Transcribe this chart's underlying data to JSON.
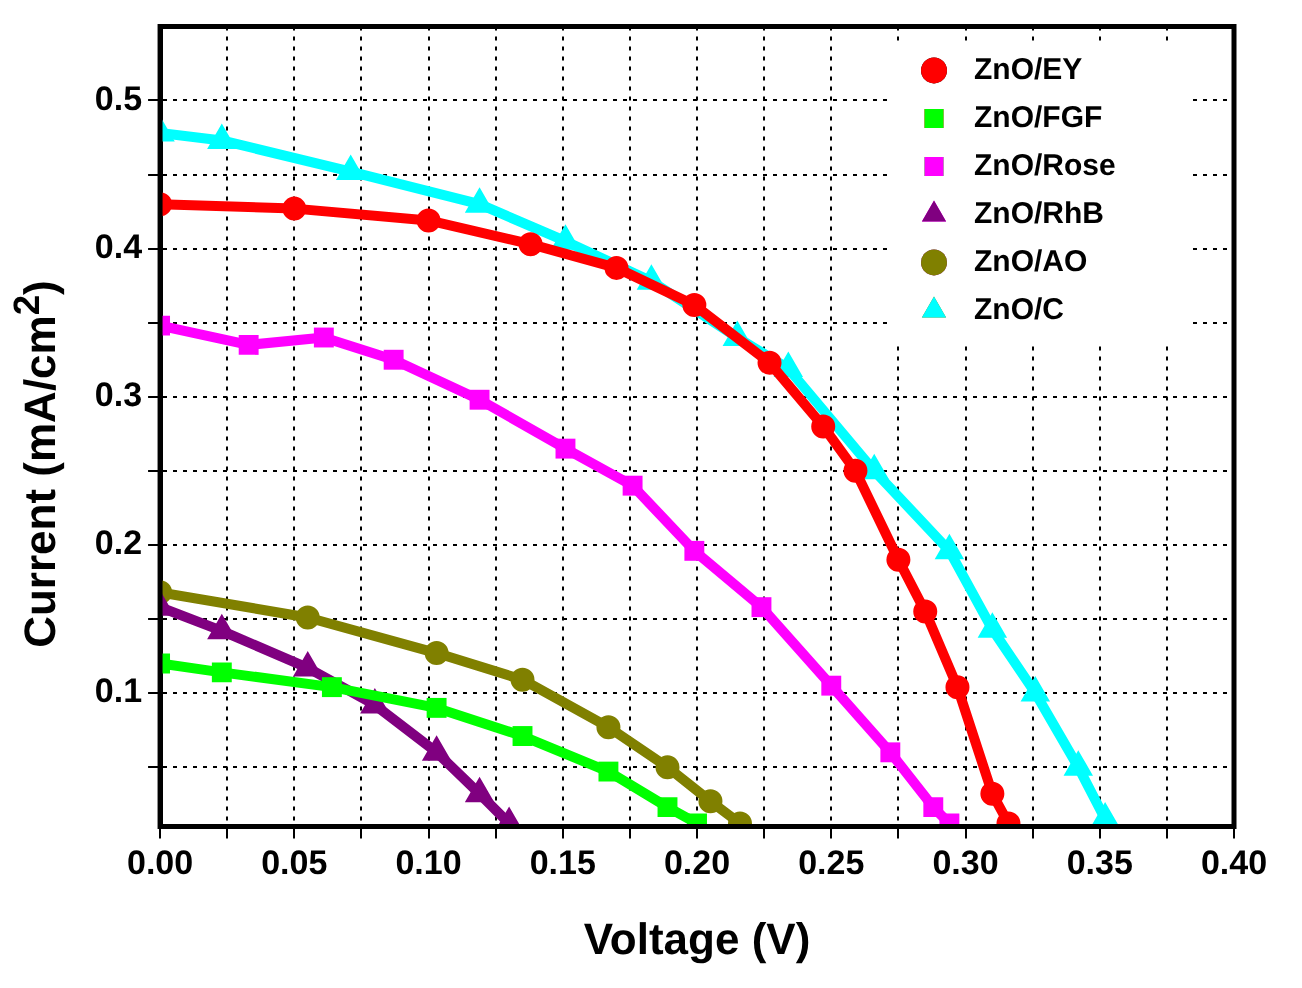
{
  "chart_data": {
    "type": "line",
    "xlabel": "Voltage (V)",
    "ylabel": "Current (mA/cm$^{2}$)",
    "xlim": [
      0,
      0.4
    ],
    "ylim": [
      0.01,
      0.55
    ],
    "xticks": [
      {
        "value": 0,
        "label": "0.00"
      },
      {
        "value": 0.025,
        "label": null
      },
      {
        "value": 0.05,
        "label": "0.05"
      },
      {
        "value": 0.075,
        "label": null
      },
      {
        "value": 0.1,
        "label": "0.10"
      },
      {
        "value": 0.125,
        "label": null
      },
      {
        "value": 0.15,
        "label": "0.15"
      },
      {
        "value": 0.175,
        "label": null
      },
      {
        "value": 0.2,
        "label": "0.20"
      },
      {
        "value": 0.225,
        "label": null
      },
      {
        "value": 0.25,
        "label": "0.25"
      },
      {
        "value": 0.275,
        "label": null
      },
      {
        "value": 0.3,
        "label": "0.30"
      },
      {
        "value": 0.325,
        "label": null
      },
      {
        "value": 0.35,
        "label": "0.35"
      },
      {
        "value": 0.375,
        "label": null
      },
      {
        "value": 0.4,
        "label": "0.40"
      }
    ],
    "yticks": [
      {
        "value": 0.05,
        "label": null
      },
      0.1,
      {
        "value": 0.15,
        "label": null
      },
      0.2,
      {
        "value": 0.25,
        "label": null
      },
      0.3,
      {
        "value": 0.35,
        "label": null
      },
      0.4,
      {
        "value": 0.45,
        "label": null
      },
      0.5
    ],
    "grid": true,
    "legend": "top right",
    "series": [
      {
        "name": "ZnO/EY",
        "color": "#ff0000",
        "marker": "circle",
        "x": [
          0,
          0.05,
          0.1,
          0.138,
          0.17,
          0.199,
          0.227,
          0.247,
          0.259,
          0.275,
          0.285,
          0.297,
          0.31,
          0.316
        ],
        "values": [
          0.43,
          0.427,
          0.419,
          0.403,
          0.387,
          0.362,
          0.323,
          0.28,
          0.25,
          0.19,
          0.155,
          0.104,
          0.032,
          0.012
        ]
      },
      {
        "name": "ZnO/FGF",
        "color": "#00ff00",
        "marker": "square",
        "x": [
          0,
          0.023,
          0.064,
          0.103,
          0.135,
          0.167,
          0.189,
          0.2
        ],
        "values": [
          0.12,
          0.114,
          0.104,
          0.09,
          0.071,
          0.047,
          0.023,
          0.012
        ]
      },
      {
        "name": "ZnO/Rose",
        "color": "#ff00ff",
        "marker": "square",
        "x": [
          0,
          0.033,
          0.061,
          0.087,
          0.119,
          0.151,
          0.176,
          0.199,
          0.224,
          0.25,
          0.272,
          0.288,
          0.294
        ],
        "values": [
          0.348,
          0.335,
          0.34,
          0.325,
          0.298,
          0.265,
          0.24,
          0.196,
          0.158,
          0.105,
          0.06,
          0.023,
          0.012
        ]
      },
      {
        "name": "ZnO/RhB",
        "color": "#800080",
        "marker": "triangle",
        "x": [
          0,
          0.023,
          0.055,
          0.08,
          0.103,
          0.119,
          0.13
        ],
        "values": [
          0.158,
          0.142,
          0.117,
          0.092,
          0.06,
          0.032,
          0.012
        ]
      },
      {
        "name": "ZnO/AO",
        "color": "#808000",
        "marker": "circle",
        "x": [
          0,
          0.055,
          0.103,
          0.135,
          0.167,
          0.189,
          0.205,
          0.216
        ],
        "values": [
          0.168,
          0.151,
          0.127,
          0.109,
          0.077,
          0.05,
          0.027,
          0.012
        ]
      },
      {
        "name": "ZnO/C",
        "color": "#00ffff",
        "marker": "triangle",
        "x": [
          0,
          0.023,
          0.071,
          0.119,
          0.151,
          0.183,
          0.215,
          0.234,
          0.266,
          0.294,
          0.31,
          0.326,
          0.342,
          0.352
        ],
        "values": [
          0.478,
          0.473,
          0.452,
          0.43,
          0.405,
          0.378,
          0.34,
          0.319,
          0.25,
          0.196,
          0.143,
          0.1,
          0.05,
          0.015
        ]
      }
    ]
  }
}
